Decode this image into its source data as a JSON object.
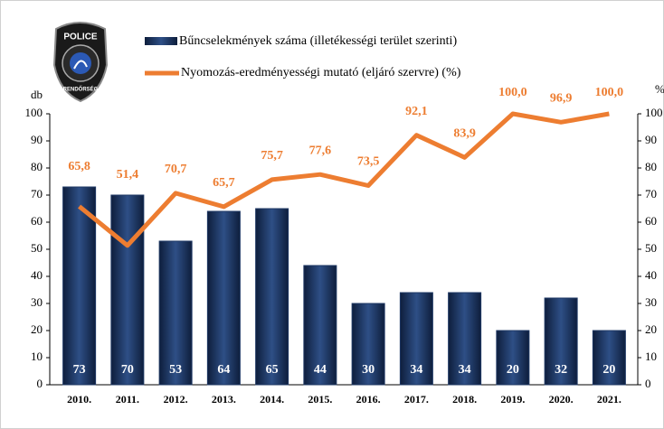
{
  "chart_data": {
    "type": "bar",
    "logo_text": "POLICE",
    "logo_subtext": "RENDŐRSÉG",
    "ylabel": "db",
    "y2label": "%",
    "categories": [
      "2010.",
      "2011.",
      "2012.",
      "2013.",
      "2014.",
      "2015.",
      "2016.",
      "2017.",
      "2018.",
      "2019.",
      "2020.",
      "2021."
    ],
    "series": [
      {
        "name": "Bűncselekmények száma (illetékességi terület szerinti)",
        "type": "bar",
        "color": "#1f3864",
        "values": [
          73,
          70,
          53,
          64,
          65,
          44,
          30,
          34,
          34,
          20,
          32,
          20
        ]
      },
      {
        "name": "Nyomozás-eredményességi mutató (eljáró szervre) (%)",
        "type": "line",
        "axis": "y2",
        "color": "#ed7d31",
        "values": [
          65.8,
          51.4,
          70.7,
          65.7,
          75.7,
          77.6,
          73.5,
          92.1,
          83.9,
          100.0,
          96.9,
          100.0
        ],
        "value_labels": [
          "65,8",
          "51,4",
          "70,7",
          "65,7",
          "75,7",
          "77,6",
          "73,5",
          "92,1",
          "83,9",
          "100,0",
          "96,9",
          "100,0"
        ]
      }
    ],
    "ylim": [
      0,
      100
    ],
    "yticks": [
      0,
      10,
      20,
      30,
      40,
      50,
      60,
      70,
      80,
      90,
      100
    ],
    "y2lim": [
      0,
      100
    ],
    "y2ticks": [
      0,
      10,
      20,
      30,
      40,
      50,
      60,
      70,
      80,
      90,
      100
    ],
    "grid": false
  }
}
